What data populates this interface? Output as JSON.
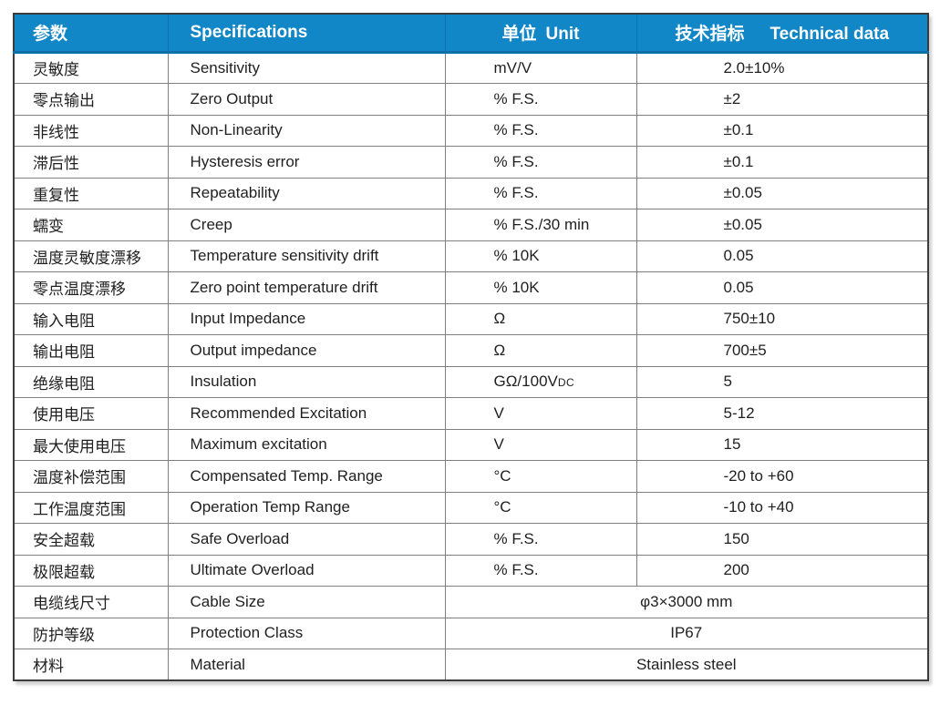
{
  "colors": {
    "header_bg": "#1287C8",
    "header_border": "#0E6FA6",
    "header_text": "#FFFFFF",
    "grid_line": "#7F7F7F",
    "outer_border": "#3C3C3C",
    "body_text": "#1F1F1F"
  },
  "header": {
    "param_zh": "参数",
    "spec_en": "Specifications",
    "unit_zh": "单位",
    "unit_en": "Unit",
    "tech_zh": "技术指标",
    "tech_en": "Technical data"
  },
  "rows": [
    {
      "param": "灵敏度",
      "spec": "Sensitivity",
      "unit": "mV/V",
      "value": "2.0±10%"
    },
    {
      "param": "零点输出",
      "spec": "Zero Output",
      "unit": "% F.S.",
      "value": "±2"
    },
    {
      "param": "非线性",
      "spec": "Non-Linearity",
      "unit": "% F.S.",
      "value": "±0.1"
    },
    {
      "param": "滞后性",
      "spec": "Hysteresis error",
      "unit": "% F.S.",
      "value": "±0.1"
    },
    {
      "param": "重复性",
      "spec": "Repeatability",
      "unit": "% F.S.",
      "value": "±0.05"
    },
    {
      "param": "蠕变",
      "spec": "Creep",
      "unit": "% F.S./30 min",
      "value": "±0.05"
    },
    {
      "param": "温度灵敏度漂移",
      "spec": "Temperature sensitivity drift",
      "unit": "% 10K",
      "value": "0.05"
    },
    {
      "param": "零点温度漂移",
      "spec": "Zero point temperature drift",
      "unit": "% 10K",
      "value": "0.05"
    },
    {
      "param": "输入电阻",
      "spec": "Input Impedance",
      "unit": "Ω",
      "value": "750±10"
    },
    {
      "param": "输出电阻",
      "spec": "Output impedance",
      "unit": "Ω",
      "value": "700±5"
    },
    {
      "param": "绝缘电阻",
      "spec": "Insulation",
      "unit": "GΩ/100V",
      "unit_small": "DC",
      "value": "5"
    },
    {
      "param": "使用电压",
      "spec": "Recommended Excitation",
      "unit": "V",
      "value": "5-12"
    },
    {
      "param": "最大使用电压",
      "spec": "Maximum excitation",
      "unit": "V",
      "value": "15"
    },
    {
      "param": "温度补偿范围",
      "spec": "Compensated Temp. Range",
      "unit": "°C",
      "value": "-20 to +60"
    },
    {
      "param": "工作温度范围",
      "spec": "Operation Temp Range",
      "unit": "°C",
      "value": "-10 to +40"
    },
    {
      "param": "安全超载",
      "spec": "Safe Overload",
      "unit": "% F.S.",
      "value": "150"
    },
    {
      "param": "极限超载",
      "spec": "Ultimate Overload",
      "unit": "% F.S.",
      "value": "200"
    },
    {
      "param": "电缆线尺寸",
      "spec": "Cable Size",
      "merged_value": "φ3×3000 mm"
    },
    {
      "param": "防护等级",
      "spec": "Protection Class",
      "merged_value": "IP67"
    },
    {
      "param": "材料",
      "spec": "Material",
      "merged_value": "Stainless steel"
    }
  ]
}
